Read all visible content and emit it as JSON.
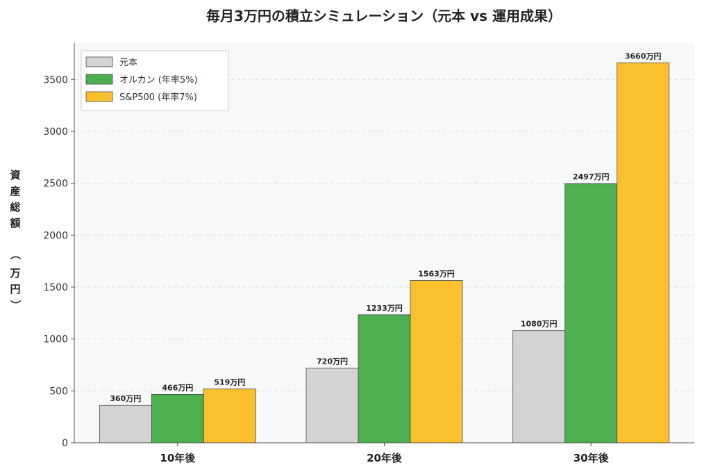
{
  "chart_data": {
    "type": "bar",
    "title": "毎月3万円の積立シミュレーション（元本 vs 運用成果）",
    "xlabel": "",
    "ylabel": "資産総額（万円）",
    "categories": [
      "10年後",
      "20年後",
      "30年後"
    ],
    "series": [
      {
        "name": "元本",
        "values": [
          360,
          720,
          1080
        ],
        "color": "#d3d3d3",
        "labels": [
          "360万円",
          "720万円",
          "1080万円"
        ]
      },
      {
        "name": "オルカン (年率5%)",
        "values": [
          466,
          1233,
          2497
        ],
        "color": "#4caf50",
        "labels": [
          "466万円",
          "1233万円",
          "2497万円"
        ]
      },
      {
        "name": "S&P500 (年率7%)",
        "values": [
          519,
          1563,
          3660
        ],
        "color": "#fbc02d",
        "labels": [
          "519万円",
          "1563万円",
          "3660万円"
        ]
      }
    ],
    "ylim": [
      0,
      3850
    ],
    "yticks": [
      0,
      500,
      1000,
      1500,
      2000,
      2500,
      3000,
      3500
    ],
    "grid": true,
    "legend": "top-left",
    "plot_background": "#f7f8fa"
  }
}
